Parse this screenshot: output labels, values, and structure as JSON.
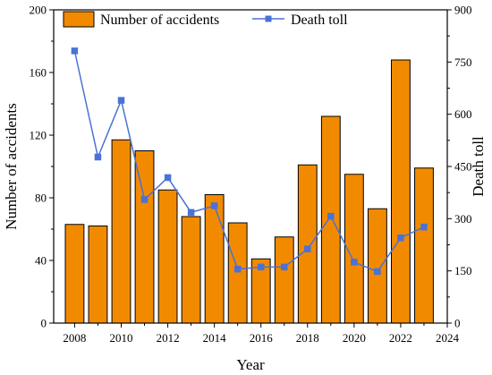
{
  "chart_data": {
    "type": "bar+line",
    "x": [
      2008,
      2009,
      2010,
      2011,
      2012,
      2013,
      2014,
      2015,
      2016,
      2017,
      2018,
      2019,
      2020,
      2021,
      2022,
      2023
    ],
    "series": [
      {
        "name": "Number of accidents",
        "type": "bar",
        "axis": "left",
        "color": "#f28a00",
        "values": [
          63,
          62,
          117,
          110,
          85,
          68,
          82,
          64,
          41,
          55,
          101,
          132,
          95,
          73,
          168,
          99
        ]
      },
      {
        "name": "Death toll",
        "type": "line",
        "axis": "right",
        "color": "#4a72d6",
        "marker": "square",
        "values": [
          782,
          477,
          640,
          355,
          418,
          318,
          337,
          155,
          161,
          161,
          213,
          307,
          175,
          148,
          245,
          276
        ]
      }
    ],
    "xlabel": "Year",
    "ylabel": "Number of accidents",
    "y2label": "Death toll",
    "xlim": [
      2007.1,
      2024
    ],
    "xticks": [
      2008,
      2010,
      2012,
      2014,
      2016,
      2018,
      2020,
      2022,
      2024
    ],
    "ylim": [
      0,
      200
    ],
    "yticks": [
      0,
      40,
      80,
      120,
      160,
      200
    ],
    "y2lim": [
      0,
      900
    ],
    "y2ticks": [
      0,
      150,
      300,
      450,
      600,
      750,
      900
    ],
    "legend_position": "top",
    "grid": false
  }
}
